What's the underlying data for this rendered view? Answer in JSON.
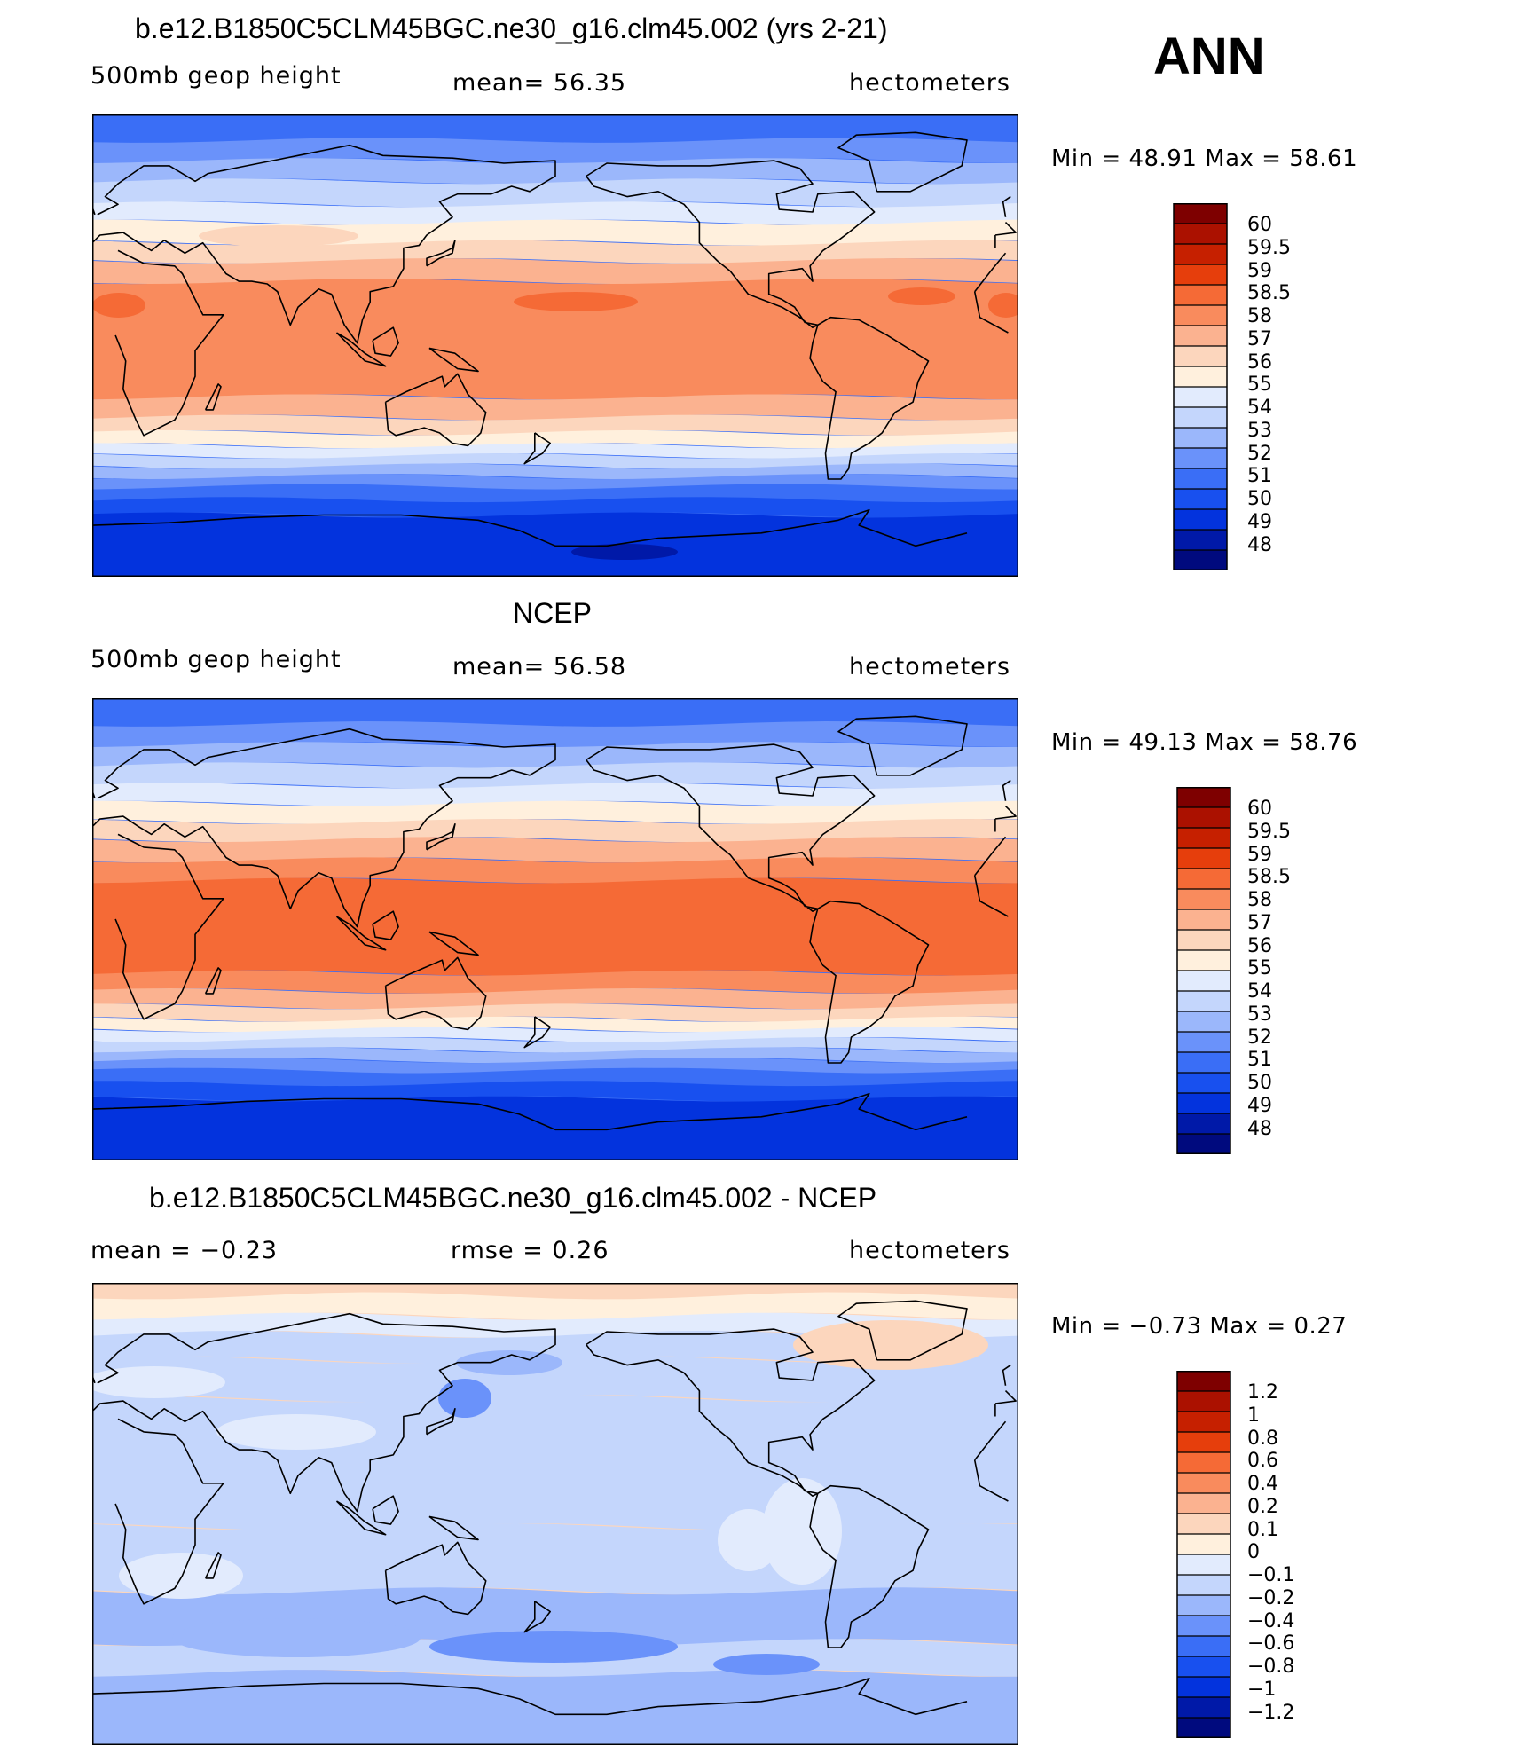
{
  "header": {
    "season": "ANN"
  },
  "colors": {
    "abs_levels": [
      "#000a7e",
      "#0019a8",
      "#0333dd",
      "#1850ef",
      "#3a6ef6",
      "#6a92fa",
      "#9bb7fb",
      "#c4d6fc",
      "#e2ebfd",
      "#fff0dd",
      "#fcd6bd",
      "#fbb290",
      "#f98b5d",
      "#f56a36",
      "#e63e0c",
      "#c62000",
      "#ab1100",
      "#7e0000"
    ],
    "diff_levels": [
      "#000a7e",
      "#0019a8",
      "#0333dd",
      "#1850ef",
      "#3a6ef6",
      "#6a92fa",
      "#9bb7fb",
      "#c4d6fc",
      "#e2ebfd",
      "#fff0dd",
      "#fcd6bd",
      "#fbb290",
      "#f98b5d",
      "#f56a36",
      "#e63e0c",
      "#c62000",
      "#ab1100",
      "#7e0000"
    ]
  },
  "panels": [
    {
      "title": "b.e12.B1850C5CLM45BGC.ne30_g16.clm45.002 (yrs 2-21)",
      "left_label": "500mb geop height",
      "center_label": "mean=   56.35",
      "right_label": "hectometers",
      "minmax": "Min =    48.91  Max =    58.61",
      "colorbar_labels": [
        "60",
        "59.5",
        "59",
        "58.5",
        "58",
        "57",
        "56",
        "55",
        "54",
        "53",
        "52",
        "51",
        "50",
        "49",
        "48"
      ],
      "field": "model"
    },
    {
      "title": "NCEP",
      "left_label": "500mb geop height",
      "center_label": "mean=   56.58",
      "right_label": "hectometers",
      "minmax": "Min =    49.13  Max =    58.76",
      "colorbar_labels": [
        "60",
        "59.5",
        "59",
        "58.5",
        "58",
        "57",
        "56",
        "55",
        "54",
        "53",
        "52",
        "51",
        "50",
        "49",
        "48"
      ],
      "field": "obs"
    },
    {
      "title": "b.e12.B1850C5CLM45BGC.ne30_g16.clm45.002 - NCEP",
      "left_label": "mean =    −0.23",
      "center_label": "rmse =     0.26",
      "right_label": "hectometers",
      "minmax": "Min =    −0.73  Max =     0.27",
      "colorbar_labels": [
        "1.2",
        "1",
        "0.8",
        "0.6",
        "0.4",
        "0.2",
        "0.1",
        "0",
        "−0.1",
        "−0.2",
        "−0.4",
        "−0.6",
        "−0.8",
        "−1",
        "−1.2"
      ],
      "field": "diff"
    }
  ]
}
